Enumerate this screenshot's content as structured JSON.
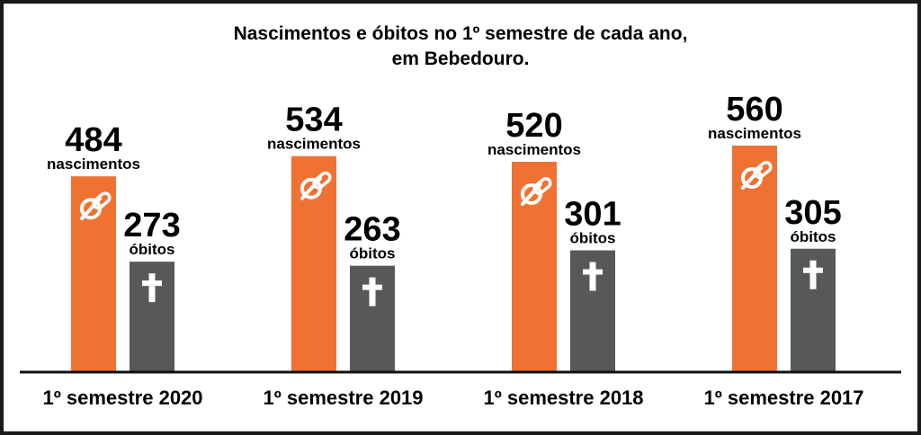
{
  "chart_data": {
    "type": "bar",
    "title_lines": [
      "Nascimentos e óbitos no 1º semestre de cada ano,",
      "em Bebedouro."
    ],
    "categories": [
      "1º semestre 2020",
      "1º semestre 2019",
      "1º semestre 2018",
      "1º semestre 2017"
    ],
    "series": [
      {
        "name": "nascimentos",
        "values": [
          484,
          534,
          520,
          560
        ],
        "color": "#f07232",
        "icon": "pacifier-icon"
      },
      {
        "name": "óbitos",
        "values": [
          273,
          263,
          301,
          305
        ],
        "color": "#58585a",
        "icon": "cross-icon"
      }
    ],
    "xlabel": "",
    "ylabel": "",
    "grid": false,
    "legend": "none"
  }
}
